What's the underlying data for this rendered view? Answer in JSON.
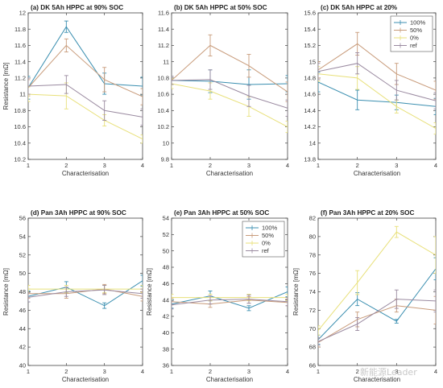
{
  "series_colors": {
    "100%": "#3b8fb0",
    "50%": "#c89b7a",
    "0%": "#e8e07a",
    "ref": "#9a8aa0"
  },
  "watermark": "新能源Leader",
  "chart_data": [
    {
      "type": "line",
      "title": "(a) DK 5Ah HPPC at 90% SOC",
      "xlabel": "Characterisation",
      "ylabel": "Resistance [mΩ]",
      "x": [
        1,
        2,
        3,
        4
      ],
      "xlim": [
        1,
        4
      ],
      "ylim": [
        10.2,
        12
      ],
      "yticks": [
        10.2,
        10.4,
        10.6,
        10.8,
        11,
        11.2,
        11.4,
        11.6,
        11.8,
        12
      ],
      "legend": null,
      "series": [
        {
          "key": "100%",
          "values": [
            11.08,
            11.83,
            11.13,
            11.1
          ],
          "err": [
            0.14,
            0.07,
            0.13,
            0.11
          ]
        },
        {
          "key": "50%",
          "values": [
            11.08,
            11.6,
            11.18,
            10.97
          ],
          "err": [
            0.1,
            0.08,
            0.15,
            0.1
          ]
        },
        {
          "key": "0%",
          "values": [
            11.0,
            10.98,
            10.68,
            10.45
          ],
          "err": [
            0.09,
            0.16,
            0.07,
            0.05
          ]
        },
        {
          "key": "ref",
          "values": [
            11.1,
            11.12,
            10.8,
            10.72
          ],
          "err": [
            0.1,
            0.11,
            0.12,
            0.1
          ]
        }
      ]
    },
    {
      "type": "line",
      "title": "(b) DK 5Ah HPPC at 50% SOC",
      "xlabel": "Characterisation",
      "ylabel": "",
      "x": [
        1,
        2,
        3,
        4
      ],
      "xlim": [
        1,
        4
      ],
      "ylim": [
        9.8,
        11.6
      ],
      "yticks": [
        9.8,
        10,
        10.2,
        10.4,
        10.6,
        10.8,
        11,
        11.2,
        11.4,
        11.6
      ],
      "legend": null,
      "series": [
        {
          "key": "100%",
          "values": [
            10.77,
            10.76,
            10.72,
            10.73
          ],
          "err": [
            0.05,
            0.14,
            0.18,
            0.1
          ]
        },
        {
          "key": "50%",
          "values": [
            10.77,
            11.2,
            10.95,
            10.63
          ],
          "err": [
            0.05,
            0.13,
            0.14,
            0.12
          ]
        },
        {
          "key": "0%",
          "values": [
            10.73,
            10.64,
            10.45,
            10.2
          ],
          "err": [
            0.06,
            0.1,
            0.12,
            0.07
          ]
        },
        {
          "key": "ref",
          "values": [
            10.77,
            10.78,
            10.58,
            10.43
          ],
          "err": [
            0.05,
            0.12,
            0.13,
            0.1
          ]
        }
      ]
    },
    {
      "type": "line",
      "title": "(c) DK 5Ah HPPC at 20%",
      "xlabel": "Characterisation",
      "ylabel": "",
      "x": [
        1,
        2,
        3,
        4
      ],
      "xlim": [
        1,
        4
      ],
      "ylim": [
        13.8,
        15.6
      ],
      "yticks": [
        13.8,
        14,
        14.2,
        14.4,
        14.6,
        14.8,
        15,
        15.2,
        15.4,
        15.6
      ],
      "legend": "top-right",
      "legend_entries": [
        "100%",
        "50%",
        "0%",
        "ref"
      ],
      "series": [
        {
          "key": "100%",
          "values": [
            14.75,
            14.53,
            14.5,
            14.45
          ],
          "err": [
            0.12,
            0.12,
            0.09,
            0.1
          ]
        },
        {
          "key": "50%",
          "values": [
            14.9,
            15.22,
            14.85,
            14.65
          ],
          "err": [
            0.1,
            0.14,
            0.13,
            0.11
          ]
        },
        {
          "key": "0%",
          "values": [
            14.85,
            14.8,
            14.45,
            14.18
          ],
          "err": [
            0.09,
            0.14,
            0.08,
            0.07
          ]
        },
        {
          "key": "ref",
          "values": [
            14.88,
            14.98,
            14.65,
            14.52
          ],
          "err": [
            0.1,
            0.13,
            0.12,
            0.1
          ]
        }
      ]
    },
    {
      "type": "line",
      "title": "(d) Pan 3Ah HPPC at 90% SOC",
      "xlabel": "Characterisation",
      "ylabel": "Resistance [mΩ]",
      "x": [
        1,
        2,
        3,
        4
      ],
      "xlim": [
        1,
        4
      ],
      "ylim": [
        40,
        56
      ],
      "yticks": [
        40,
        42,
        44,
        46,
        48,
        50,
        52,
        54,
        56
      ],
      "legend": null,
      "series": [
        {
          "key": "100%",
          "values": [
            47.5,
            48.5,
            46.5,
            49.2
          ],
          "err": [
            0.6,
            0.6,
            0.3,
            0.6
          ]
        },
        {
          "key": "50%",
          "values": [
            47.8,
            47.8,
            48.3,
            47.5
          ],
          "err": [
            0.5,
            0.5,
            0.5,
            0.5
          ]
        },
        {
          "key": "0%",
          "values": [
            48.3,
            48.3,
            48.3,
            48.3
          ],
          "err": [
            0.4,
            0.4,
            0.4,
            0.4
          ]
        },
        {
          "key": "ref",
          "values": [
            47.4,
            48.0,
            48.2,
            47.8
          ],
          "err": [
            0.5,
            0.5,
            0.5,
            0.5
          ]
        }
      ]
    },
    {
      "type": "line",
      "title": "(e) Pan 3Ah HPPC at 50% SOC",
      "xlabel": "Characterisation",
      "ylabel": "Resistance [mΩ]",
      "x": [
        1,
        2,
        3,
        4
      ],
      "xlim": [
        1,
        4
      ],
      "ylim": [
        36,
        54
      ],
      "yticks": [
        36,
        38,
        40,
        42,
        44,
        46,
        48,
        50,
        52,
        54
      ],
      "legend": "top-right",
      "legend_entries": [
        "100%",
        "50%",
        "0%",
        "ref"
      ],
      "series": [
        {
          "key": "100%",
          "values": [
            43.5,
            44.5,
            43.0,
            45.0
          ],
          "err": [
            0.5,
            0.6,
            0.3,
            0.6
          ]
        },
        {
          "key": "50%",
          "values": [
            43.8,
            43.5,
            44.0,
            43.7
          ],
          "err": [
            0.4,
            0.4,
            0.4,
            0.4
          ]
        },
        {
          "key": "0%",
          "values": [
            44.3,
            44.3,
            44.3,
            44.3
          ],
          "err": [
            0.4,
            0.4,
            0.4,
            0.4
          ]
        },
        {
          "key": "ref",
          "values": [
            43.4,
            44.0,
            44.1,
            43.8
          ],
          "err": [
            0.5,
            0.5,
            0.5,
            0.5
          ]
        }
      ]
    },
    {
      "type": "line",
      "title": "(f) Pan 3Ah HPPC at 20% SOC",
      "xlabel": "Characterisation",
      "ylabel": "Resistance [mΩ]",
      "x": [
        1,
        2,
        3,
        4
      ],
      "xlim": [
        1,
        4
      ],
      "ylim": [
        66,
        82
      ],
      "yticks": [
        66,
        68,
        70,
        72,
        74,
        76,
        78,
        80,
        82
      ],
      "legend": null,
      "series": [
        {
          "key": "100%",
          "values": [
            68.8,
            73.2,
            70.8,
            76.5
          ],
          "err": [
            0.5,
            0.7,
            0.2,
            1.2
          ]
        },
        {
          "key": "50%",
          "values": [
            68.5,
            71.0,
            72.5,
            72.0
          ],
          "err": [
            0.5,
            0.8,
            0.7,
            1.5
          ]
        },
        {
          "key": "0%",
          "values": [
            69.8,
            75.0,
            80.5,
            78.0
          ],
          "err": [
            0.5,
            1.3,
            0.6,
            2.0
          ]
        },
        {
          "key": "ref",
          "values": [
            68.6,
            70.5,
            73.2,
            73.0
          ],
          "err": [
            0.4,
            0.7,
            1.0,
            1.2
          ]
        }
      ]
    }
  ]
}
